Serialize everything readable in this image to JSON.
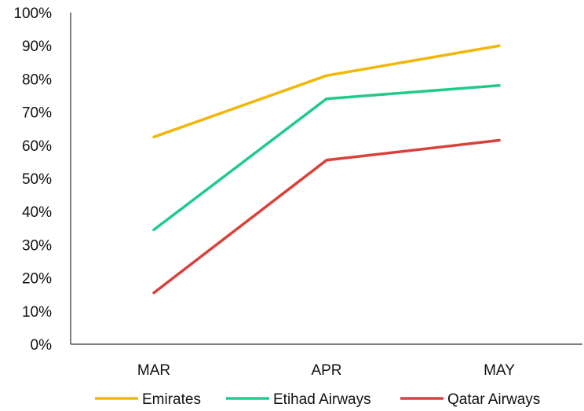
{
  "chart_data": {
    "type": "line",
    "categories": [
      "MAR",
      "APR",
      "MAY"
    ],
    "series": [
      {
        "name": "Emirates",
        "values": [
          62.5,
          81,
          90
        ],
        "color": "#F2B705"
      },
      {
        "name": "Etihad Airways",
        "values": [
          34.5,
          74,
          78
        ],
        "color": "#1FCB8B"
      },
      {
        "name": "Qatar Airways",
        "values": [
          15.5,
          55.5,
          61.5
        ],
        "color": "#D9413A"
      }
    ],
    "ylim": [
      0,
      100
    ],
    "y_ticks": [
      "0%",
      "10%",
      "20%",
      "30%",
      "40%",
      "50%",
      "60%",
      "70%",
      "80%",
      "90%",
      "100%"
    ],
    "y_tick_values": [
      0,
      10,
      20,
      30,
      40,
      50,
      60,
      70,
      80,
      90,
      100
    ],
    "grid": false,
    "legend_position": "bottom",
    "axis_color": "#000000"
  }
}
